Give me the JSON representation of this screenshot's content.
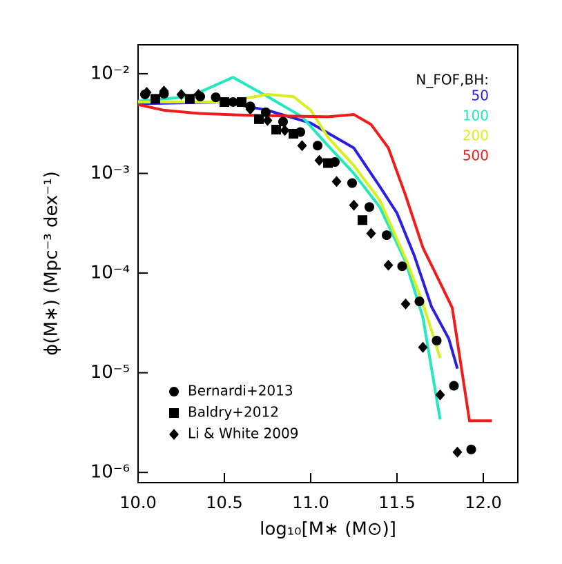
{
  "chart_data": {
    "type": "line",
    "xlabel": "log₁₀[M∗ (M⊙)]",
    "ylabel": "ϕ(M∗)  (Mpc⁻³ dex⁻¹)",
    "yscale": "log",
    "xlim": [
      10.0,
      12.2
    ],
    "ylim": [
      7.9e-07,
      0.0195
    ],
    "xticks": [
      {
        "value": 10.0,
        "label": "10.0"
      },
      10.5,
      {
        "value": 11.0,
        "label": "11.0"
      },
      11.5,
      {
        "value": 12.0,
        "label": "12.0"
      }
    ],
    "yticks": [
      {
        "value": 0.01,
        "label": "10⁻²"
      },
      {
        "value": 0.001,
        "label": "10⁻³"
      },
      {
        "value": 0.0001,
        "label": "10⁻⁴"
      },
      {
        "value": 1e-05,
        "label": "10⁻⁵"
      },
      {
        "value": 1e-06,
        "label": "10⁻⁶"
      }
    ],
    "legend_title": "N_FOF,BH:",
    "legend": "top-right",
    "marker_legend": "bottom-left",
    "series": [
      {
        "name": "50",
        "color": "#2a1fe0",
        "x": [
          10.0,
          10.5,
          10.75,
          11.0,
          11.25,
          11.4,
          11.5,
          11.6,
          11.7,
          11.8,
          11.85
        ],
        "values": [
          0.005,
          0.0052,
          0.0043,
          0.0032,
          0.0018,
          0.00074,
          0.0004,
          0.00015,
          4.6e-05,
          2.2e-05,
          1.1e-05
        ]
      },
      {
        "name": "100",
        "color": "#22e8c0",
        "x": [
          10.0,
          10.3,
          10.55,
          10.75,
          10.95,
          11.1,
          11.25,
          11.4,
          11.55,
          11.65,
          11.75
        ],
        "values": [
          0.0053,
          0.0059,
          0.0092,
          0.0059,
          0.0037,
          0.0019,
          0.001,
          0.00046,
          0.00013,
          3.6e-05,
          3.4e-06
        ]
      },
      {
        "name": "200",
        "color": "#d8f01e",
        "x": [
          10.0,
          10.5,
          10.75,
          10.9,
          11.0,
          11.1,
          11.25,
          11.4,
          11.55,
          11.65,
          11.75
        ],
        "values": [
          0.0052,
          0.0052,
          0.0062,
          0.0059,
          0.0043,
          0.0023,
          0.0012,
          0.00054,
          0.00014,
          5e-05,
          1.4e-05
        ]
      },
      {
        "name": "500",
        "color": "#f01c1c",
        "x": [
          10.0,
          10.15,
          10.35,
          10.6,
          10.9,
          11.1,
          11.25,
          11.35,
          11.45,
          11.55,
          11.65,
          11.75,
          11.82,
          11.92,
          12.05
        ],
        "values": [
          0.0049,
          0.0043,
          0.004,
          0.00385,
          0.00375,
          0.0037,
          0.0039,
          0.0031,
          0.0018,
          0.0006,
          0.00018,
          8e-05,
          4.5e-05,
          3.3e-06,
          3.3e-06
        ]
      },
      {
        "name": "Bernardi+2013",
        "color": "#000000",
        "marker": "circle",
        "x": [
          10.04,
          10.15,
          10.36,
          10.45,
          10.55,
          10.65,
          10.74,
          10.84,
          10.94,
          11.04,
          11.14,
          11.24,
          11.34,
          11.44,
          11.53,
          11.63,
          11.73,
          11.83,
          11.93
        ],
        "values": [
          0.0062,
          0.0063,
          0.0059,
          0.0058,
          0.0052,
          0.0047,
          0.0041,
          0.0033,
          0.0026,
          0.0019,
          0.0013,
          0.0008,
          0.00046,
          0.00024,
          0.000117,
          5.2e-05,
          2.1e-05,
          7.4e-06,
          1.7e-06
        ]
      },
      {
        "name": "Baldry+2012",
        "color": "#000000",
        "marker": "square",
        "x": [
          10.1,
          10.3,
          10.5,
          10.6,
          10.7,
          10.8,
          10.9,
          11.1,
          11.3
        ],
        "values": [
          0.0056,
          0.0056,
          0.0052,
          0.0052,
          0.0035,
          0.00275,
          0.0025,
          0.00127,
          0.00034
        ]
      },
      {
        "name": "Li & White 2009",
        "color": "#000000",
        "marker": "diamond",
        "x": [
          10.05,
          10.15,
          10.25,
          10.35,
          10.65,
          10.75,
          10.85,
          10.95,
          11.05,
          11.15,
          11.25,
          11.35,
          11.45,
          11.55,
          11.65,
          11.75,
          11.85
        ],
        "values": [
          0.0065,
          0.0067,
          0.0062,
          0.0062,
          0.0044,
          0.0034,
          0.0027,
          0.0019,
          0.00135,
          0.00083,
          0.00048,
          0.00025,
          0.00012,
          4.9e-05,
          1.8e-05,
          6e-06,
          1.6e-06
        ]
      }
    ]
  }
}
